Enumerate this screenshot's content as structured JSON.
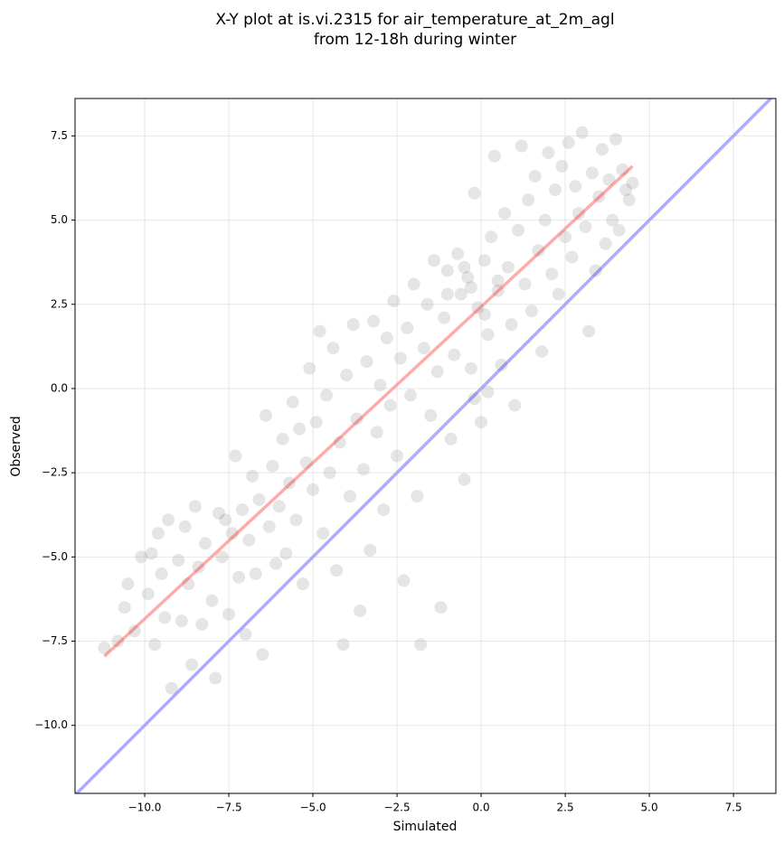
{
  "chart_data": {
    "type": "scatter",
    "title": [
      "X-Y plot at is.vi.2315 for air_temperature_at_2m_agl",
      "from 12-18h during winter"
    ],
    "xlabel": "Simulated",
    "ylabel": "Observed",
    "xlim": [
      -12.07,
      8.76
    ],
    "ylim": [
      -12.02,
      8.61
    ],
    "xticks": [
      {
        "value": -10,
        "label": "−10.0"
      },
      {
        "value": -7.5,
        "label": "−7.5"
      },
      {
        "value": -5,
        "label": "−5.0"
      },
      {
        "value": -2.5,
        "label": "−2.5"
      },
      {
        "value": 0,
        "label": "0.0"
      },
      2.5,
      {
        "value": 5,
        "label": "5.0"
      },
      7.5
    ],
    "yticks": [
      {
        "value": -10,
        "label": "−10.0"
      },
      {
        "value": -7.5,
        "label": "−7.5"
      },
      {
        "value": -5,
        "label": "−5.0"
      },
      {
        "value": -2.5,
        "label": "−2.5"
      },
      {
        "value": 0,
        "label": "0.0"
      },
      2.5,
      {
        "value": 5,
        "label": "5.0"
      },
      7.5
    ],
    "grid": true,
    "points": {
      "color": "#000000",
      "opacity": 0.1,
      "x": [
        -11.2,
        -10.8,
        -10.6,
        -10.5,
        -10.3,
        -10.1,
        -9.9,
        -9.8,
        -9.7,
        -9.6,
        -9.5,
        -9.4,
        -9.3,
        -9.2,
        -9.0,
        -8.9,
        -8.8,
        -8.7,
        -8.6,
        -8.5,
        -8.4,
        -8.3,
        -8.2,
        -8.0,
        -7.9,
        -7.8,
        -7.7,
        -7.6,
        -7.5,
        -7.4,
        -7.3,
        -7.2,
        -7.1,
        -7.0,
        -6.9,
        -6.8,
        -6.7,
        -6.6,
        -6.5,
        -6.4,
        -6.3,
        -6.2,
        -6.1,
        -6.0,
        -5.9,
        -5.8,
        -5.7,
        -5.6,
        -5.5,
        -5.4,
        -5.3,
        -5.2,
        -5.1,
        -5.0,
        -4.9,
        -4.8,
        -4.7,
        -4.6,
        -4.5,
        -4.4,
        -4.3,
        -4.2,
        -4.1,
        -4.0,
        -3.9,
        -3.8,
        -3.7,
        -3.6,
        -3.5,
        -3.4,
        -3.3,
        -3.2,
        -3.1,
        -3.0,
        -2.9,
        -2.8,
        -2.7,
        -2.6,
        -2.5,
        -2.4,
        -2.3,
        -2.2,
        -2.1,
        -2.0,
        -1.9,
        -1.8,
        -1.7,
        -1.6,
        -1.5,
        -1.4,
        -1.3,
        -1.2,
        -1.1,
        -1.0,
        -0.9,
        -0.8,
        -0.7,
        -0.6,
        -0.5,
        -0.4,
        -0.3,
        -0.2,
        -0.1,
        0.0,
        0.1,
        0.2,
        0.3,
        0.4,
        0.5,
        0.6,
        0.7,
        0.8,
        0.9,
        1.0,
        1.1,
        1.2,
        1.3,
        1.4,
        1.5,
        1.6,
        1.7,
        1.8,
        1.9,
        2.0,
        2.1,
        2.2,
        2.3,
        2.4,
        2.5,
        2.6,
        2.7,
        2.8,
        2.9,
        3.0,
        3.1,
        3.2,
        3.3,
        3.4,
        3.5,
        3.6,
        3.7,
        3.8,
        3.9,
        4.0,
        4.1,
        4.2,
        4.3,
        4.4,
        4.5,
        -0.2,
        0.2,
        -0.3,
        0.5,
        -1.0,
        -0.5,
        0.1
      ],
      "y": [
        -7.7,
        -7.5,
        -6.5,
        -5.8,
        -7.2,
        -5.0,
        -6.1,
        -4.9,
        -7.6,
        -4.3,
        -5.5,
        -6.8,
        -3.9,
        -8.9,
        -5.1,
        -6.9,
        -4.1,
        -5.8,
        -8.2,
        -3.5,
        -5.3,
        -7.0,
        -4.6,
        -6.3,
        -8.6,
        -3.7,
        -5.0,
        -3.9,
        -6.7,
        -4.3,
        -2.0,
        -5.6,
        -3.6,
        -7.3,
        -4.5,
        -2.6,
        -5.5,
        -3.3,
        -7.9,
        -0.8,
        -4.1,
        -2.3,
        -5.2,
        -3.5,
        -1.5,
        -4.9,
        -2.8,
        -0.4,
        -3.9,
        -1.2,
        -5.8,
        -2.2,
        0.6,
        -3.0,
        -1.0,
        1.7,
        -4.3,
        -0.2,
        -2.5,
        1.2,
        -5.4,
        -1.6,
        -7.6,
        0.4,
        -3.2,
        1.9,
        -0.9,
        -6.6,
        -2.4,
        0.8,
        -4.8,
        2.0,
        -1.3,
        0.1,
        -3.6,
        1.5,
        -0.5,
        2.6,
        -2.0,
        0.9,
        -5.7,
        1.8,
        -0.2,
        3.1,
        -3.2,
        -7.6,
        1.2,
        2.5,
        -0.8,
        3.8,
        0.5,
        -6.5,
        2.1,
        3.5,
        -1.5,
        1.0,
        4.0,
        2.8,
        -2.7,
        3.3,
        0.6,
        5.8,
        2.4,
        -1.0,
        3.8,
        1.6,
        4.5,
        6.9,
        2.9,
        0.7,
        5.2,
        3.6,
        1.9,
        -0.5,
        4.7,
        7.2,
        3.1,
        5.6,
        2.3,
        6.3,
        4.1,
        1.1,
        5.0,
        7.0,
        3.4,
        5.9,
        2.8,
        6.6,
        4.5,
        7.3,
        3.9,
        6.0,
        5.2,
        7.6,
        4.8,
        1.7,
        6.4,
        3.5,
        5.7,
        7.1,
        4.3,
        6.2,
        5.0,
        7.4,
        4.7,
        6.5,
        5.9,
        5.6,
        6.1,
        -0.3,
        -0.1,
        3.0,
        3.2,
        2.8,
        3.6,
        2.2
      ]
    },
    "fit_line": {
      "color": "#ff0000",
      "opacity": 0.33,
      "x": [
        -11.2,
        4.5
      ],
      "y": [
        -7.95,
        6.6
      ]
    },
    "identity_line": {
      "color": "#0000ff",
      "opacity": 0.33,
      "x": [
        -12.07,
        8.76
      ],
      "y": [
        -12.07,
        8.76
      ]
    }
  }
}
